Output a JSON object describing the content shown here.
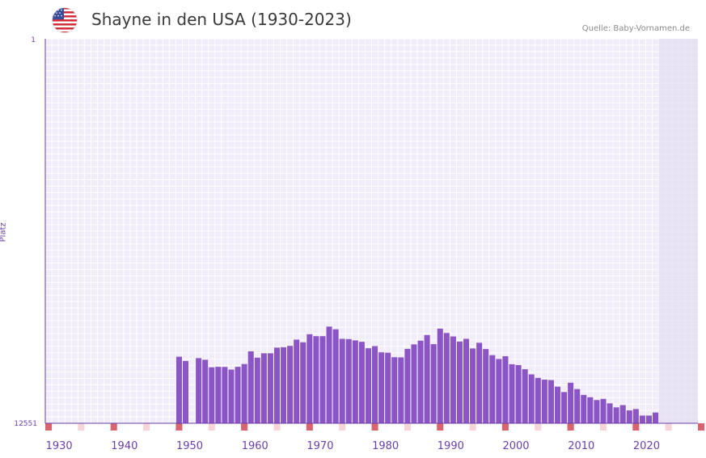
{
  "header": {
    "title": "Shayne in den USA (1930-2023)",
    "source": "Quelle: Baby-Vornamen.de",
    "flag_icon": "us-flag-icon"
  },
  "colors": {
    "bar": "#8c55c6",
    "axis": "#6a3fa8",
    "grid_bg": "#f1ecfa",
    "grid_line": "#ffffff",
    "shade": "#e3dff0",
    "decade_marker": "#d9646e",
    "minor_marker": "#f6d4d8"
  },
  "chart_data": {
    "type": "bar",
    "title": "Shayne in den USA (1930-2023)",
    "xlabel": "",
    "ylabel": "Platz",
    "y_reversed": true,
    "y_scale": "log",
    "ylim": [
      1,
      12551
    ],
    "y_tick_labels": [
      "1",
      "12551"
    ],
    "x_range": [
      1928,
      2028
    ],
    "x_tick_labels": [
      "1930",
      "1940",
      "1950",
      "1960",
      "1970",
      "1980",
      "1990",
      "2000",
      "2010",
      "2020"
    ],
    "shaded_from_year": 2022,
    "years": [
      1948,
      1949,
      1951,
      1952,
      1953,
      1954,
      1955,
      1956,
      1957,
      1958,
      1959,
      1960,
      1961,
      1962,
      1963,
      1964,
      1965,
      1966,
      1967,
      1968,
      1969,
      1970,
      1971,
      1972,
      1973,
      1974,
      1975,
      1976,
      1977,
      1978,
      1979,
      1980,
      1981,
      1982,
      1983,
      1984,
      1985,
      1986,
      1987,
      1988,
      1989,
      1990,
      1991,
      1992,
      1993,
      1994,
      1995,
      1996,
      1997,
      1998,
      1999,
      2000,
      2001,
      2002,
      2003,
      2004,
      2005,
      2006,
      2007,
      2008,
      2009,
      2010,
      2011,
      2012,
      2013,
      2014,
      2015,
      2016,
      2017,
      2018,
      2019,
      2020,
      2021
    ],
    "values": [
      2450,
      2720,
      2540,
      2640,
      3180,
      3140,
      3150,
      3360,
      3140,
      2930,
      2150,
      2510,
      2250,
      2250,
      1960,
      1940,
      1880,
      1610,
      1720,
      1410,
      1480,
      1480,
      1170,
      1250,
      1580,
      1590,
      1640,
      1700,
      1990,
      1890,
      2200,
      2220,
      2480,
      2490,
      2020,
      1810,
      1650,
      1440,
      1800,
      1230,
      1370,
      1490,
      1690,
      1580,
      2000,
      1740,
      2030,
      2360,
      2590,
      2420,
      2950,
      3010,
      3330,
      3780,
      4120,
      4300,
      4350,
      5110,
      5830,
      4640,
      5420,
      6260,
      6630,
      7100,
      6900,
      7700,
      8500,
      8040,
      9150,
      8850,
      10390,
      10390,
      9650
    ]
  }
}
